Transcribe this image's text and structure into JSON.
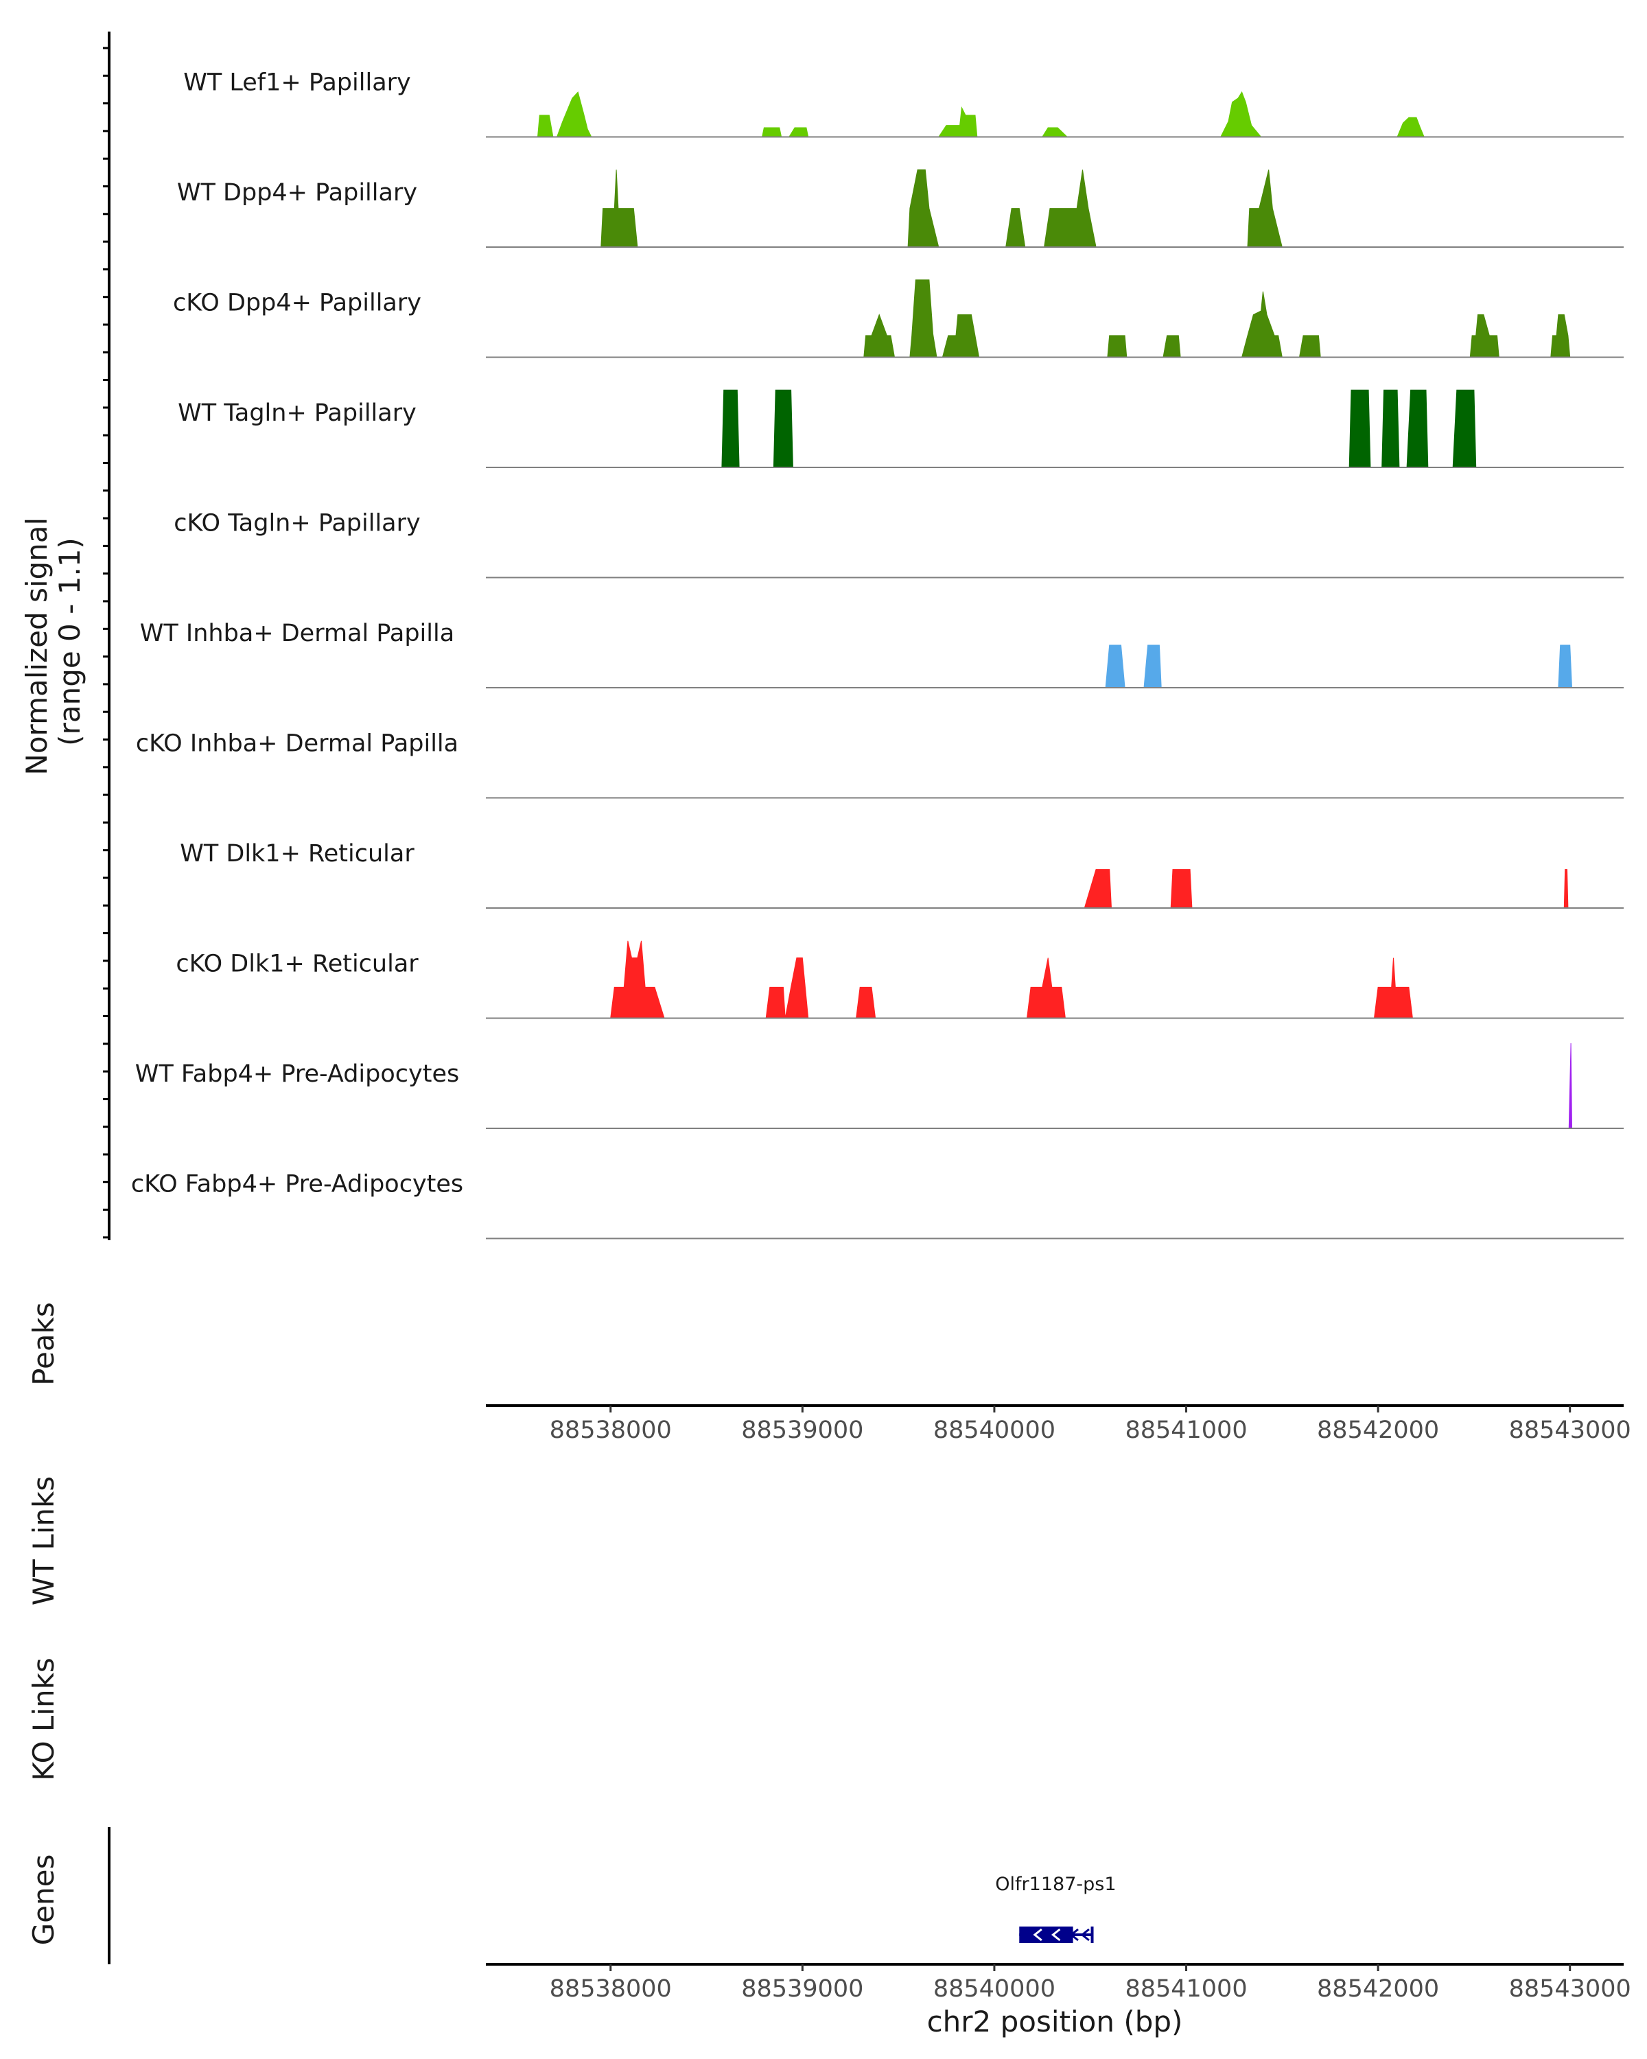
{
  "chart_data": {
    "type": "area",
    "title": "",
    "ylabel_line1": "Normalized signal",
    "ylabel_line2": "(range 0 - 1.1)",
    "xlabel": "chr2 position (bp)",
    "xlim": [
      88537350,
      88543280
    ],
    "ylim": [
      0,
      1.1
    ],
    "x_ticks": [
      "88538000",
      "88539000",
      "88540000",
      "88541000",
      "88542000",
      "88543000"
    ],
    "x_tick_values": [
      88538000,
      88539000,
      88540000,
      88541000,
      88542000,
      88543000
    ],
    "tracks": [
      {
        "name": "WT Lef1+ Papillary",
        "color": "#66cc00",
        "peaks": [
          [
            [
              88537620,
              0
            ],
            [
              88537630,
              0.28
            ],
            [
              88537680,
              0.28
            ],
            [
              88537700,
              0
            ]
          ],
          [
            [
              88537720,
              0
            ],
            [
              88537750,
              0.2
            ],
            [
              88537800,
              0.5
            ],
            [
              88537830,
              0.58
            ],
            [
              88537860,
              0.3
            ],
            [
              88537880,
              0.1
            ],
            [
              88537900,
              0
            ]
          ],
          [
            [
              88538790,
              0
            ],
            [
              88538800,
              0.12
            ],
            [
              88538880,
              0.12
            ],
            [
              88538890,
              0
            ]
          ],
          [
            [
              88538930,
              0
            ],
            [
              88538960,
              0.12
            ],
            [
              88539020,
              0.12
            ],
            [
              88539030,
              0
            ]
          ],
          [
            [
              88539710,
              0
            ],
            [
              88539750,
              0.15
            ],
            [
              88539820,
              0.15
            ],
            [
              88539830,
              0.38
            ],
            [
              88539850,
              0.28
            ],
            [
              88539900,
              0.28
            ],
            [
              88539910,
              0
            ]
          ],
          [
            [
              88540250,
              0
            ],
            [
              88540280,
              0.12
            ],
            [
              88540330,
              0.12
            ],
            [
              88540380,
              0
            ]
          ],
          [
            [
              88541180,
              0
            ],
            [
              88541220,
              0.2
            ],
            [
              88541240,
              0.45
            ],
            [
              88541270,
              0.5
            ],
            [
              88541290,
              0.58
            ],
            [
              88541310,
              0.45
            ],
            [
              88541340,
              0.15
            ],
            [
              88541390,
              0
            ]
          ],
          [
            [
              88542100,
              0
            ],
            [
              88542130,
              0.18
            ],
            [
              88542160,
              0.25
            ],
            [
              88542200,
              0.25
            ],
            [
              88542220,
              0.12
            ],
            [
              88542240,
              0
            ]
          ]
        ]
      },
      {
        "name": "WT Dpp4+ Papillary",
        "color": "#4a8a08",
        "peaks": [
          [
            [
              88537950,
              0
            ],
            [
              88537960,
              0.5
            ],
            [
              88538020,
              0.5
            ],
            [
              88538030,
              1.0
            ],
            [
              88538040,
              0.5
            ],
            [
              88538120,
              0.5
            ],
            [
              88538140,
              0
            ]
          ],
          [
            [
              88539550,
              0
            ],
            [
              88539560,
              0.5
            ],
            [
              88539600,
              1.0
            ],
            [
              88539640,
              1.0
            ],
            [
              88539660,
              0.5
            ],
            [
              88539710,
              0
            ]
          ],
          [
            [
              88540060,
              0
            ],
            [
              88540090,
              0.5
            ],
            [
              88540130,
              0.5
            ],
            [
              88540160,
              0
            ]
          ],
          [
            [
              88540260,
              0
            ],
            [
              88540290,
              0.5
            ],
            [
              88540430,
              0.5
            ],
            [
              88540460,
              1.0
            ],
            [
              88540490,
              0.5
            ],
            [
              88540530,
              0
            ]
          ],
          [
            [
              88541320,
              0
            ],
            [
              88541330,
              0.5
            ],
            [
              88541380,
              0.5
            ],
            [
              88541430,
              1.0
            ],
            [
              88541450,
              0.5
            ],
            [
              88541500,
              0
            ]
          ]
        ]
      },
      {
        "name": "cKO Dpp4+ Papillary",
        "color": "#4a8a08",
        "peaks": [
          [
            [
              88539320,
              0
            ],
            [
              88539330,
              0.28
            ],
            [
              88539360,
              0.28
            ],
            [
              88539400,
              0.55
            ],
            [
              88539440,
              0.28
            ],
            [
              88539460,
              0.28
            ],
            [
              88539480,
              0
            ]
          ],
          [
            [
              88539560,
              0
            ],
            [
              88539570,
              0.28
            ],
            [
              88539590,
              1.0
            ],
            [
              88539660,
              1.0
            ],
            [
              88539680,
              0.3
            ],
            [
              88539700,
              0
            ]
          ],
          [
            [
              88539730,
              0
            ],
            [
              88539760,
              0.28
            ],
            [
              88539800,
              0.28
            ],
            [
              88539810,
              0.55
            ],
            [
              88539880,
              0.55
            ],
            [
              88539920,
              0
            ]
          ],
          [
            [
              88540590,
              0
            ],
            [
              88540600,
              0.28
            ],
            [
              88540680,
              0.28
            ],
            [
              88540690,
              0
            ]
          ],
          [
            [
              88540880,
              0
            ],
            [
              88540900,
              0.28
            ],
            [
              88540960,
              0.28
            ],
            [
              88540970,
              0
            ]
          ],
          [
            [
              88541290,
              0
            ],
            [
              88541320,
              0.28
            ],
            [
              88541350,
              0.55
            ],
            [
              88541390,
              0.6
            ],
            [
              88541400,
              0.85
            ],
            [
              88541420,
              0.55
            ],
            [
              88541460,
              0.28
            ],
            [
              88541480,
              0.28
            ],
            [
              88541500,
              0
            ]
          ],
          [
            [
              88541590,
              0
            ],
            [
              88541610,
              0.28
            ],
            [
              88541690,
              0.28
            ],
            [
              88541700,
              0
            ]
          ],
          [
            [
              88542480,
              0
            ],
            [
              88542490,
              0.28
            ],
            [
              88542510,
              0.28
            ],
            [
              88542520,
              0.55
            ],
            [
              88542550,
              0.55
            ],
            [
              88542580,
              0.28
            ],
            [
              88542620,
              0.28
            ],
            [
              88542630,
              0
            ]
          ],
          [
            [
              88542900,
              0
            ],
            [
              88542910,
              0.28
            ],
            [
              88542930,
              0.28
            ],
            [
              88542940,
              0.55
            ],
            [
              88542970,
              0.55
            ],
            [
              88542990,
              0.28
            ],
            [
              88543000,
              0
            ]
          ]
        ]
      },
      {
        "name": "WT Tagln+ Papillary",
        "color": "#006400",
        "peaks": [
          [
            [
              88538580,
              0
            ],
            [
              88538590,
              1.0
            ],
            [
              88538660,
              1.0
            ],
            [
              88538670,
              0
            ]
          ],
          [
            [
              88538850,
              0
            ],
            [
              88538860,
              1.0
            ],
            [
              88538940,
              1.0
            ],
            [
              88538950,
              0
            ]
          ],
          [
            [
              88541850,
              0
            ],
            [
              88541860,
              1.0
            ],
            [
              88541950,
              1.0
            ],
            [
              88541960,
              0
            ]
          ],
          [
            [
              88542020,
              0
            ],
            [
              88542030,
              1.0
            ],
            [
              88542100,
              1.0
            ],
            [
              88542110,
              0
            ]
          ],
          [
            [
              88542150,
              0
            ],
            [
              88542170,
              1.0
            ],
            [
              88542250,
              1.0
            ],
            [
              88542260,
              0
            ]
          ],
          [
            [
              88542390,
              0
            ],
            [
              88542410,
              1.0
            ],
            [
              88542500,
              1.0
            ],
            [
              88542510,
              0
            ]
          ]
        ]
      },
      {
        "name": "cKO Tagln+ Papillary",
        "color": "#006400",
        "peaks": []
      },
      {
        "name": "WT Inhba+ Dermal Papilla",
        "color": "#56a9ea",
        "peaks": [
          [
            [
              88540580,
              0
            ],
            [
              88540600,
              0.55
            ],
            [
              88540660,
              0.55
            ],
            [
              88540680,
              0
            ]
          ],
          [
            [
              88540780,
              0
            ],
            [
              88540800,
              0.55
            ],
            [
              88540860,
              0.55
            ],
            [
              88540870,
              0
            ]
          ],
          [
            [
              88542940,
              0
            ],
            [
              88542950,
              0.55
            ],
            [
              88543000,
              0.55
            ],
            [
              88543010,
              0
            ]
          ]
        ]
      },
      {
        "name": "cKO Inhba+ Dermal Papilla",
        "color": "#56a9ea",
        "peaks": []
      },
      {
        "name": "WT Dlk1+ Reticular",
        "color": "#ff2222",
        "peaks": [
          [
            [
              88540470,
              0
            ],
            [
              88540530,
              0.5
            ],
            [
              88540600,
              0.5
            ],
            [
              88540610,
              0
            ]
          ],
          [
            [
              88540920,
              0
            ],
            [
              88540930,
              0.5
            ],
            [
              88541020,
              0.5
            ],
            [
              88541030,
              0
            ]
          ],
          [
            [
              88542970,
              0
            ],
            [
              88542975,
              0.5
            ],
            [
              88542985,
              0.5
            ],
            [
              88542990,
              0
            ]
          ]
        ]
      },
      {
        "name": "cKO Dlk1+ Reticular",
        "color": "#ff2222",
        "peaks": [
          [
            [
              88538000,
              0
            ],
            [
              88538020,
              0.4
            ],
            [
              88538070,
              0.4
            ],
            [
              88538090,
              1.0
            ],
            [
              88538110,
              0.78
            ],
            [
              88538140,
              0.78
            ],
            [
              88538160,
              1.0
            ],
            [
              88538180,
              0.4
            ],
            [
              88538230,
              0.4
            ],
            [
              88538280,
              0
            ]
          ],
          [
            [
              88538810,
              0
            ],
            [
              88538830,
              0.4
            ],
            [
              88538900,
              0.4
            ],
            [
              88538910,
              0
            ],
            [
              88538940,
              0.4
            ],
            [
              88538970,
              0.78
            ],
            [
              88539000,
              0.78
            ],
            [
              88539030,
              0
            ]
          ],
          [
            [
              88539280,
              0
            ],
            [
              88539300,
              0.4
            ],
            [
              88539360,
              0.4
            ],
            [
              88539380,
              0
            ]
          ],
          [
            [
              88540170,
              0
            ],
            [
              88540190,
              0.4
            ],
            [
              88540250,
              0.4
            ],
            [
              88540280,
              0.78
            ],
            [
              88540300,
              0.4
            ],
            [
              88540350,
              0.4
            ],
            [
              88540370,
              0
            ]
          ],
          [
            [
              88541980,
              0
            ],
            [
              88542000,
              0.4
            ],
            [
              88542070,
              0.4
            ],
            [
              88542080,
              0.78
            ],
            [
              88542090,
              0.4
            ],
            [
              88542160,
              0.4
            ],
            [
              88542180,
              0
            ]
          ]
        ]
      },
      {
        "name": "WT Fabp4+ Pre-Adipocytes",
        "color": "#a020f0",
        "peaks": [
          [
            [
              88542990,
              0
            ],
            [
              88542995,
              0
            ],
            [
              88543005,
              1.1
            ],
            [
              88543010,
              0
            ]
          ]
        ]
      },
      {
        "name": "cKO Fabp4+ Pre-Adipocytes",
        "color": "#a020f0",
        "peaks": []
      }
    ],
    "other_tracks": {
      "peaks": "Peaks",
      "wt_links": "WT Links",
      "ko_links": "KO Links",
      "genes": "Genes"
    },
    "gene": {
      "name": "Olfr1187-ps1",
      "start": 88540130,
      "end": 88540510,
      "strand": "-",
      "color": "#00008b"
    }
  }
}
